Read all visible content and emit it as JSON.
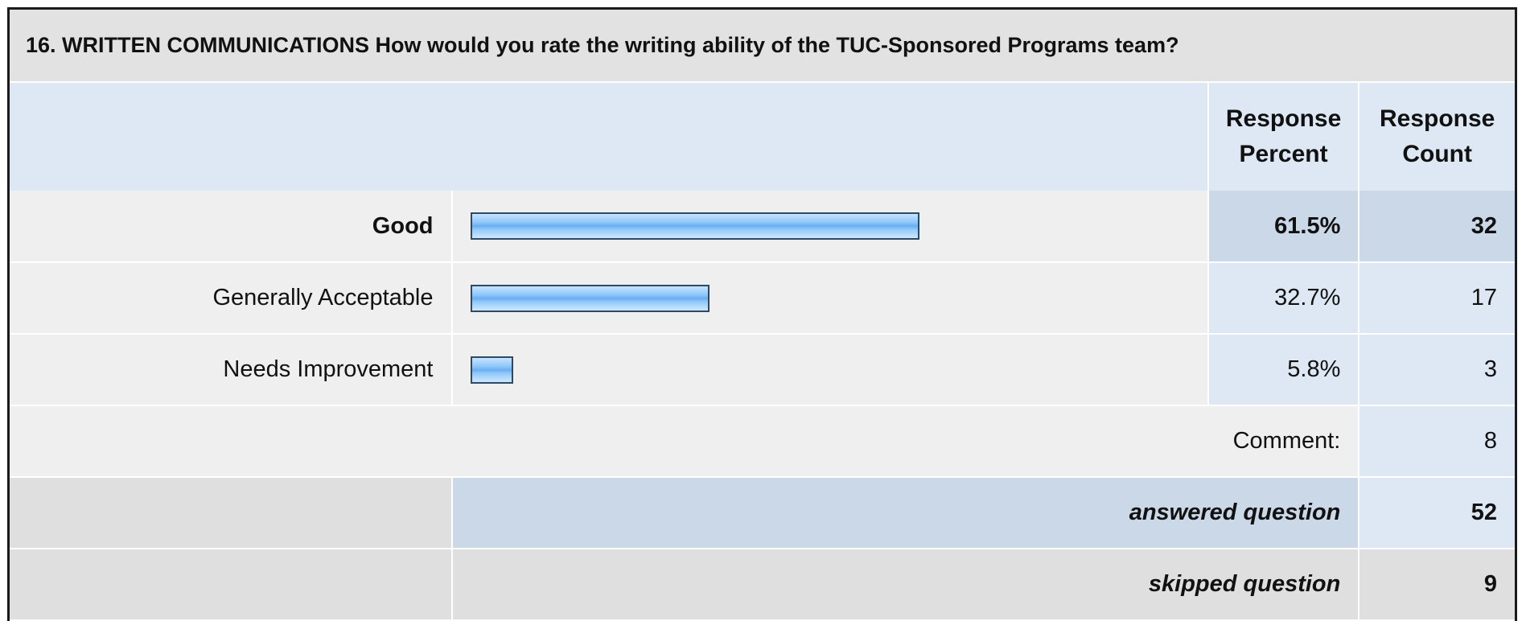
{
  "question": {
    "title": "16. WRITTEN COMMUNICATIONS How would you rate the writing ability of the TUC-Sponsored Programs team?"
  },
  "headers": {
    "response_percent": [
      "Response",
      "Percent"
    ],
    "response_count": [
      "Response",
      "Count"
    ]
  },
  "chart_data": {
    "type": "bar",
    "orientation": "horizontal",
    "categories": [
      "Good",
      "Generally Acceptable",
      "Needs Improvement"
    ],
    "percent_labels": [
      "61.5%",
      "32.7%",
      "5.8%"
    ],
    "values": [
      61.5,
      32.7,
      5.8
    ],
    "counts": [
      32,
      17,
      3
    ],
    "xlim": [
      0,
      100
    ]
  },
  "summary": {
    "comment_label": "Comment:",
    "comment_count": "8",
    "answered_label": "answered question",
    "answered_count": "52",
    "skipped_label": "skipped question",
    "skipped_count": "9"
  },
  "colors": {
    "bar_fill": "#8ec7fb",
    "bar_border": "#2c4a66",
    "header_bg": "#dde8f4",
    "highlight_bg": "#cad8e7"
  }
}
